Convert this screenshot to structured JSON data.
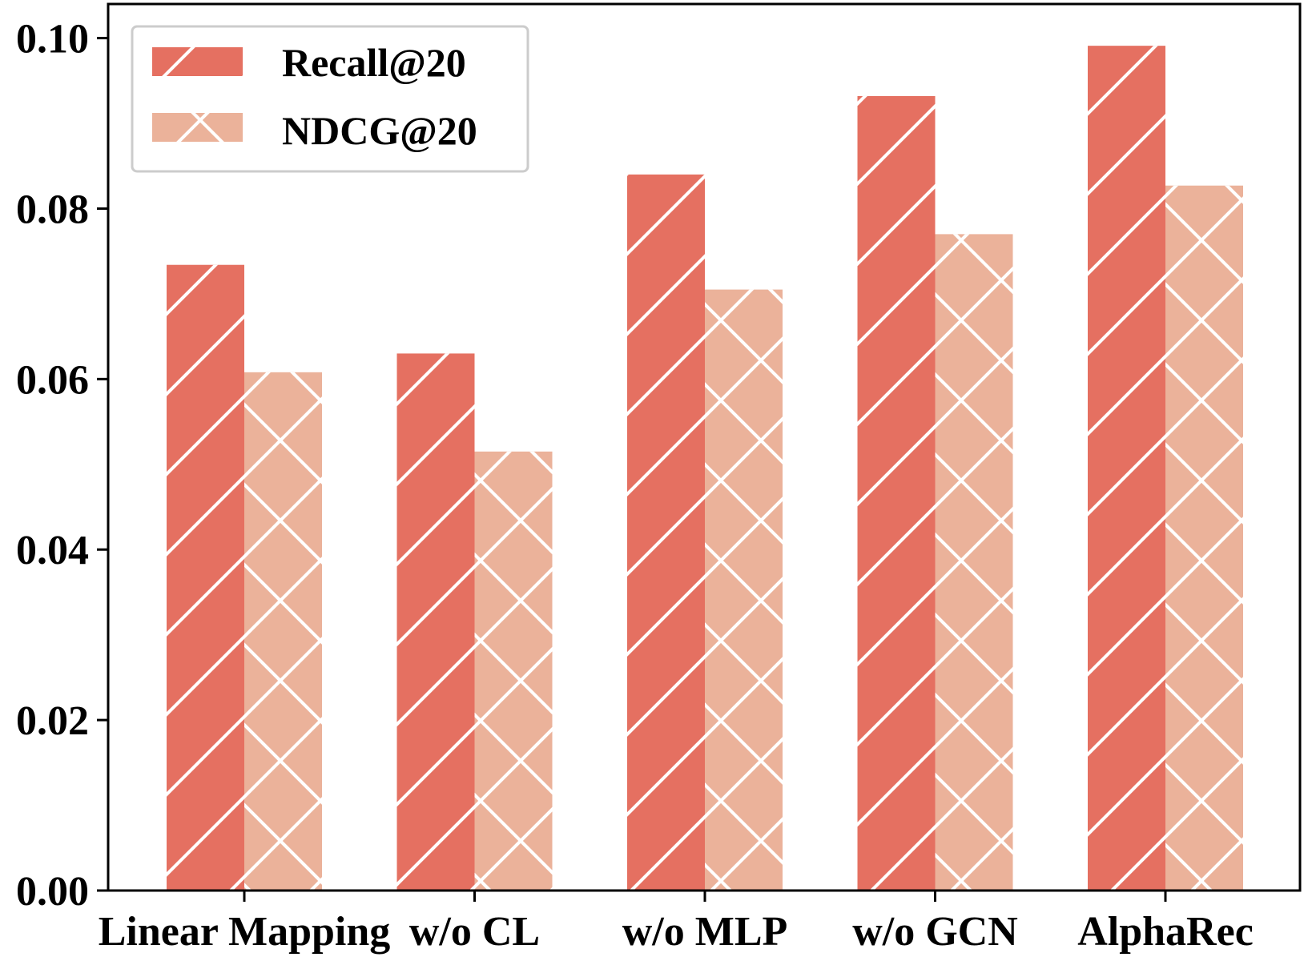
{
  "chart_data": {
    "type": "bar",
    "title": "",
    "xlabel": "",
    "ylabel": "",
    "categories": [
      "Linear Mapping",
      "w/o CL",
      "w/o MLP",
      "w/o GCN",
      "AlphaRec"
    ],
    "series": [
      {
        "name": "Recall@20",
        "values": [
          0.0734,
          0.063,
          0.084,
          0.0932,
          0.0991
        ],
        "color": "#E57061",
        "hatch": "diagonal"
      },
      {
        "name": "NDCG@20",
        "values": [
          0.0608,
          0.0515,
          0.0705,
          0.077,
          0.0827
        ],
        "color": "#EBB29A",
        "hatch": "crosshatch"
      }
    ],
    "ylim": [
      0,
      0.104
    ],
    "yticks": [
      "0.00",
      "0.02",
      "0.04",
      "0.06",
      "0.08",
      "0.10"
    ],
    "grid": false,
    "legend": "top-left"
  }
}
